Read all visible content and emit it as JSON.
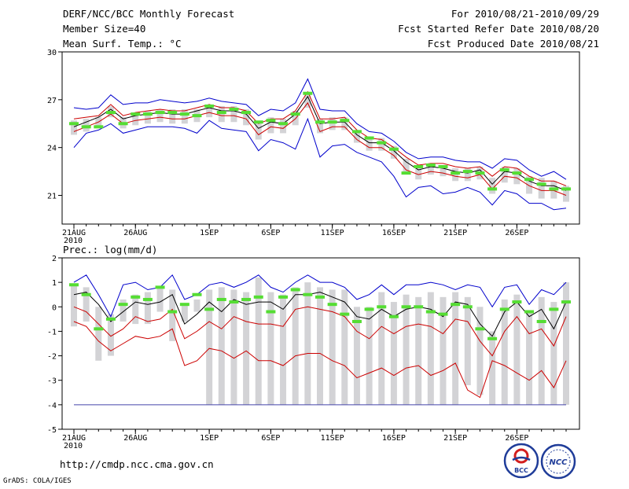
{
  "header": {
    "title_left": "DERF/NCC/BCC Monthly Forecast",
    "member_size": "Member Size=40",
    "variable": "Mean Surf. Temp.: °C",
    "for_range": "For 2010/08/21-2010/09/29",
    "started": "Fcst Started Refer Date 2010/08/20",
    "produced": "Fcst Produced Date 2010/08/21"
  },
  "footer": {
    "url": "http://cmdp.ncc.cma.gov.cn",
    "grads": "GrADS: COLA/IGES",
    "logo_left": "BCC",
    "logo_right": "NCC"
  },
  "colors": {
    "max_min": "#0000cc",
    "pct": "#cc0000",
    "mean": "#000000",
    "box": "#d3d3d6",
    "median": "#55dd33",
    "floor": "#4444aa"
  },
  "chart_data": [
    {
      "type": "line",
      "title": "Mean Surf. Temp.: °C",
      "ylim": [
        19.2,
        30
      ],
      "yticks": [
        21,
        24,
        27,
        30
      ],
      "xticks": [
        {
          "day": 0,
          "label": "21AUG",
          "sub": "2010"
        },
        {
          "day": 5,
          "label": "26AUG"
        },
        {
          "day": 11,
          "label": "1SEP"
        },
        {
          "day": 16,
          "label": "6SEP"
        },
        {
          "day": 21,
          "label": "11SEP"
        },
        {
          "day": 26,
          "label": "16SEP"
        },
        {
          "day": 31,
          "label": "21SEP"
        },
        {
          "day": 36,
          "label": "26SEP"
        }
      ],
      "series": [
        {
          "name": "max",
          "values": [
            26.5,
            26.4,
            26.5,
            27.3,
            26.7,
            26.8,
            26.8,
            27.0,
            26.9,
            26.8,
            26.9,
            27.1,
            26.9,
            26.8,
            26.7,
            26.0,
            26.4,
            26.3,
            26.8,
            28.3,
            26.4,
            26.3,
            26.3,
            25.5,
            25.0,
            24.9,
            24.4,
            23.7,
            23.3,
            23.4,
            23.4,
            23.2,
            23.1,
            23.1,
            22.7,
            23.3,
            23.2,
            22.6,
            22.2,
            22.5,
            22.0
          ]
        },
        {
          "name": "p90",
          "values": [
            25.8,
            25.9,
            26.0,
            26.7,
            26.0,
            26.2,
            26.3,
            26.4,
            26.3,
            26.3,
            26.5,
            26.7,
            26.5,
            26.5,
            26.3,
            25.5,
            25.8,
            25.8,
            26.3,
            27.5,
            25.8,
            25.8,
            25.9,
            25.1,
            24.6,
            24.5,
            24.0,
            23.4,
            22.9,
            23.0,
            23.0,
            22.8,
            22.7,
            22.8,
            22.2,
            22.8,
            22.7,
            22.2,
            21.9,
            21.9,
            21.6
          ]
        },
        {
          "name": "mean",
          "values": [
            25.3,
            25.6,
            25.9,
            26.4,
            25.8,
            26.0,
            26.1,
            26.2,
            26.1,
            26.1,
            26.3,
            26.5,
            26.3,
            26.3,
            26.1,
            25.2,
            25.6,
            25.5,
            26.1,
            27.2,
            25.5,
            25.6,
            25.6,
            24.8,
            24.3,
            24.3,
            23.8,
            23.1,
            22.6,
            22.8,
            22.7,
            22.5,
            22.4,
            22.6,
            21.7,
            22.5,
            22.4,
            21.9,
            21.6,
            21.6,
            21.3
          ]
        },
        {
          "name": "p10",
          "values": [
            25.0,
            25.3,
            25.6,
            26.1,
            25.5,
            25.7,
            25.8,
            25.9,
            25.8,
            25.8,
            26.0,
            26.2,
            26.0,
            26.0,
            25.8,
            24.8,
            25.3,
            25.2,
            25.8,
            26.8,
            25.0,
            25.3,
            25.3,
            24.5,
            24.0,
            24.0,
            23.5,
            22.6,
            22.3,
            22.5,
            22.4,
            22.2,
            22.1,
            22.3,
            21.4,
            22.2,
            22.1,
            21.6,
            21.3,
            21.3,
            21.0
          ]
        },
        {
          "name": "min",
          "values": [
            24.0,
            24.9,
            25.1,
            25.5,
            24.9,
            25.1,
            25.3,
            25.3,
            25.3,
            25.2,
            24.9,
            25.7,
            25.2,
            25.1,
            25.0,
            23.8,
            24.5,
            24.3,
            23.9,
            25.8,
            23.4,
            24.1,
            24.2,
            23.7,
            23.4,
            23.1,
            22.2,
            20.9,
            21.5,
            21.6,
            21.1,
            21.2,
            21.5,
            21.2,
            20.4,
            21.3,
            21.1,
            20.5,
            20.5,
            20.1,
            20.2
          ]
        },
        {
          "name": "median",
          "values": [
            25.5,
            25.3,
            25.3,
            26.2,
            25.5,
            26.1,
            26.1,
            26.2,
            26.2,
            26.1,
            26.0,
            26.6,
            26.2,
            26.4,
            26.2,
            25.6,
            25.7,
            25.5,
            26.1,
            27.4,
            25.6,
            25.6,
            25.7,
            25.0,
            24.6,
            24.3,
            23.9,
            22.4,
            22.8,
            22.9,
            22.8,
            22.4,
            22.5,
            22.4,
            21.4,
            22.6,
            22.4,
            22.0,
            21.7,
            21.4,
            21.4
          ]
        }
      ],
      "box_low": [
        24.8,
        25.0,
        25.2,
        25.9,
        25.2,
        25.4,
        25.5,
        25.6,
        25.5,
        25.5,
        25.6,
        25.9,
        25.6,
        25.6,
        25.4,
        24.5,
        24.9,
        24.9,
        25.4,
        26.5,
        24.9,
        25.1,
        25.1,
        24.3,
        23.8,
        23.8,
        23.3,
        22.5,
        22.0,
        22.3,
        22.2,
        21.9,
        21.9,
        22.0,
        21.1,
        21.8,
        21.7,
        21.1,
        20.8,
        20.8,
        20.6
      ],
      "box_high": [
        25.7,
        25.8,
        25.9,
        26.6,
        25.9,
        26.2,
        26.3,
        26.4,
        26.4,
        26.4,
        26.4,
        26.7,
        26.6,
        26.6,
        26.4,
        25.6,
        25.9,
        25.8,
        26.3,
        27.4,
        25.8,
        25.9,
        25.9,
        25.1,
        24.6,
        24.6,
        24.1,
        23.3,
        22.8,
        22.9,
        22.9,
        22.7,
        22.7,
        22.8,
        22.1,
        22.8,
        22.7,
        22.2,
        22.1,
        21.9,
        21.6
      ]
    },
    {
      "type": "line",
      "title": "Prec.: log(mm/d)",
      "ylim": [
        -5,
        2
      ],
      "yticks": [
        -5,
        -4,
        -3,
        -2,
        -1,
        0,
        1,
        2
      ],
      "xticks": [
        {
          "day": 0,
          "label": "21AUG",
          "sub": "2010"
        },
        {
          "day": 5,
          "label": "26AUG"
        },
        {
          "day": 11,
          "label": "1SEP"
        },
        {
          "day": 16,
          "label": "6SEP"
        },
        {
          "day": 21,
          "label": "11SEP"
        },
        {
          "day": 26,
          "label": "16SEP"
        },
        {
          "day": 31,
          "label": "21SEP"
        },
        {
          "day": 36,
          "label": "26SEP"
        }
      ],
      "floor_value": -4,
      "series": [
        {
          "name": "max",
          "values": [
            1.0,
            1.3,
            0.5,
            -0.4,
            0.9,
            1.0,
            0.7,
            0.8,
            1.3,
            0.3,
            0.5,
            0.9,
            1.0,
            0.8,
            1.0,
            1.3,
            0.8,
            0.6,
            1.0,
            1.3,
            1.0,
            1.0,
            0.8,
            0.3,
            0.5,
            0.9,
            0.5,
            0.9,
            0.9,
            1.0,
            0.9,
            0.7,
            0.9,
            0.8,
            0.0,
            0.8,
            0.9,
            0.1,
            0.7,
            0.5,
            1.0
          ]
        },
        {
          "name": "mean",
          "values": [
            0.5,
            0.6,
            0.1,
            -0.6,
            -0.2,
            0.2,
            0.1,
            0.2,
            0.5,
            -0.7,
            -0.3,
            0.2,
            -0.2,
            0.3,
            0.1,
            0.2,
            0.2,
            -0.1,
            0.5,
            0.5,
            0.6,
            0.4,
            0.2,
            -0.4,
            -0.5,
            -0.1,
            -0.4,
            -0.1,
            0.0,
            -0.1,
            -0.4,
            0.2,
            0.1,
            -0.7,
            -1.2,
            -0.2,
            0.2,
            -0.4,
            -0.1,
            -0.9,
            0.2
          ]
        },
        {
          "name": "p90",
          "values": [
            0.0,
            -0.2,
            -0.7,
            -1.2,
            -0.9,
            -0.4,
            -0.6,
            -0.5,
            -0.1,
            -1.3,
            -1.0,
            -0.6,
            -0.9,
            -0.4,
            -0.6,
            -0.7,
            -0.7,
            -0.8,
            -0.1,
            0.0,
            -0.1,
            -0.2,
            -0.4,
            -1.0,
            -1.3,
            -0.8,
            -1.1,
            -0.8,
            -0.7,
            -0.8,
            -1.1,
            -0.5,
            -0.6,
            -1.4,
            -2.0,
            -1.0,
            -0.4,
            -1.1,
            -0.9,
            -1.6,
            -0.4
          ]
        },
        {
          "name": "p10",
          "values": [
            -0.6,
            -0.8,
            -1.4,
            -1.8,
            -1.5,
            -1.2,
            -1.3,
            -1.2,
            -0.9,
            -2.4,
            -2.2,
            -1.7,
            -1.8,
            -2.1,
            -1.8,
            -2.2,
            -2.2,
            -2.4,
            -2.0,
            -1.9,
            -1.9,
            -2.2,
            -2.4,
            -2.9,
            -2.7,
            -2.5,
            -2.8,
            -2.5,
            -2.4,
            -2.8,
            -2.6,
            -2.3,
            -3.4,
            -3.7,
            -2.2,
            -2.4,
            -2.7,
            -3.0,
            -2.6,
            -3.3,
            -2.2
          ]
        },
        {
          "name": "min",
          "values": [
            -4,
            -4,
            -4,
            -4,
            -4,
            -4,
            -4,
            -4,
            -4,
            -4,
            -4,
            -4,
            -4,
            -4,
            -4,
            -4,
            -4,
            -4,
            -4,
            -4,
            -4,
            -4,
            -4,
            -4,
            -4,
            -4,
            -4,
            -4,
            -4,
            -4,
            -4,
            -4,
            -4,
            -4,
            -4,
            -4,
            -4,
            -4,
            -4,
            -4,
            -4
          ]
        },
        {
          "name": "median",
          "values": [
            0.9,
            0.5,
            -0.9,
            -0.5,
            0.1,
            0.4,
            0.3,
            0.8,
            -0.2,
            0.1,
            0.5,
            -0.1,
            0.3,
            0.2,
            0.3,
            0.4,
            -0.2,
            0.4,
            0.7,
            0.5,
            0.4,
            0.1,
            -0.3,
            -0.6,
            -0.1,
            0.0,
            -0.4,
            0.0,
            0.0,
            -0.2,
            -0.3,
            0.1,
            0.0,
            -0.9,
            -1.3,
            -0.1,
            0.2,
            -0.2,
            -0.6,
            -0.1,
            0.2
          ]
        }
      ],
      "box_low": [
        -0.8,
        -0.6,
        -2.2,
        -2.0,
        -0.6,
        -0.7,
        -0.7,
        -0.2,
        -1.4,
        -0.6,
        -0.2,
        -4.0,
        -4.0,
        -4.0,
        -4.0,
        -4.0,
        -4.0,
        -4.0,
        -4.0,
        -4.0,
        -4.0,
        -4.0,
        -4.0,
        -4.0,
        -4.0,
        -4.0,
        -4.0,
        -4.0,
        -4.0,
        -4.0,
        -4.0,
        -4.0,
        -3.2,
        -3.6,
        -4.0,
        -4.0,
        -4.0,
        -4.0,
        -4.0,
        -4.0,
        -4.0
      ],
      "box_high": [
        0.9,
        0.8,
        0.0,
        -0.3,
        0.3,
        0.5,
        0.6,
        0.8,
        0.7,
        0.1,
        0.3,
        0.7,
        0.8,
        0.7,
        0.6,
        1.2,
        0.6,
        0.5,
        0.8,
        1.0,
        0.8,
        0.7,
        0.7,
        0.0,
        0.0,
        0.6,
        0.2,
        0.5,
        0.4,
        0.6,
        0.4,
        0.6,
        0.4,
        0.0,
        -1.0,
        0.3,
        0.5,
        -0.2,
        0.4,
        0.2,
        1.0
      ]
    }
  ]
}
